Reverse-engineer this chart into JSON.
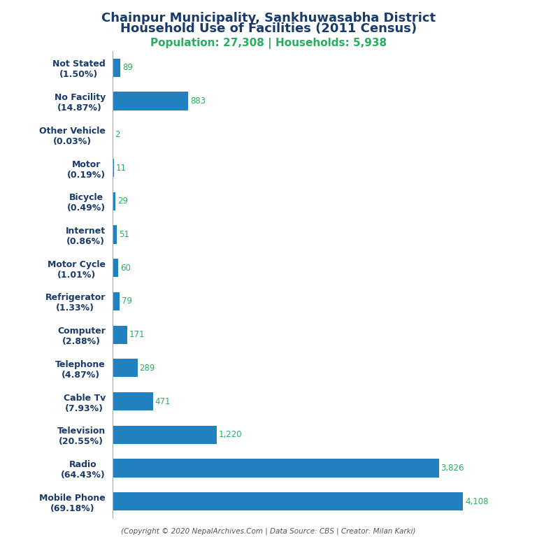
{
  "title_line1": "Chainpur Municipality, Sankhuwasabha District",
  "title_line2": "Household Use of Facilities (2011 Census)",
  "subtitle": "Population: 27,308 | Households: 5,938",
  "footer": "(Copyright © 2020 NepalArchives.Com | Data Source: CBS | Creator: Milan Karki)",
  "categories": [
    "Not Stated\n(1.50%)",
    "No Facility\n(14.87%)",
    "Other Vehicle\n(0.03%)",
    "Motor\n(0.19%)",
    "Bicycle\n(0.49%)",
    "Internet\n(0.86%)",
    "Motor Cycle\n(1.01%)",
    "Refrigerator\n(1.33%)",
    "Computer\n(2.88%)",
    "Telephone\n(4.87%)",
    "Cable Tv\n(7.93%)",
    "Television\n(20.55%)",
    "Radio\n(64.43%)",
    "Mobile Phone\n(69.18%)"
  ],
  "values": [
    89,
    883,
    2,
    11,
    29,
    51,
    60,
    79,
    171,
    289,
    471,
    1220,
    3826,
    4108
  ],
  "bar_color": "#2080c0",
  "title_color": "#1a3a6b",
  "subtitle_color": "#27ae60",
  "value_color": "#27ae60",
  "footer_color": "#555555",
  "label_color": "#1a3a6b",
  "background_color": "#ffffff",
  "xlim": [
    0,
    4600
  ],
  "title_fontsize": 13,
  "subtitle_fontsize": 11,
  "label_fontsize": 9,
  "value_fontsize": 8.5,
  "footer_fontsize": 7.5
}
